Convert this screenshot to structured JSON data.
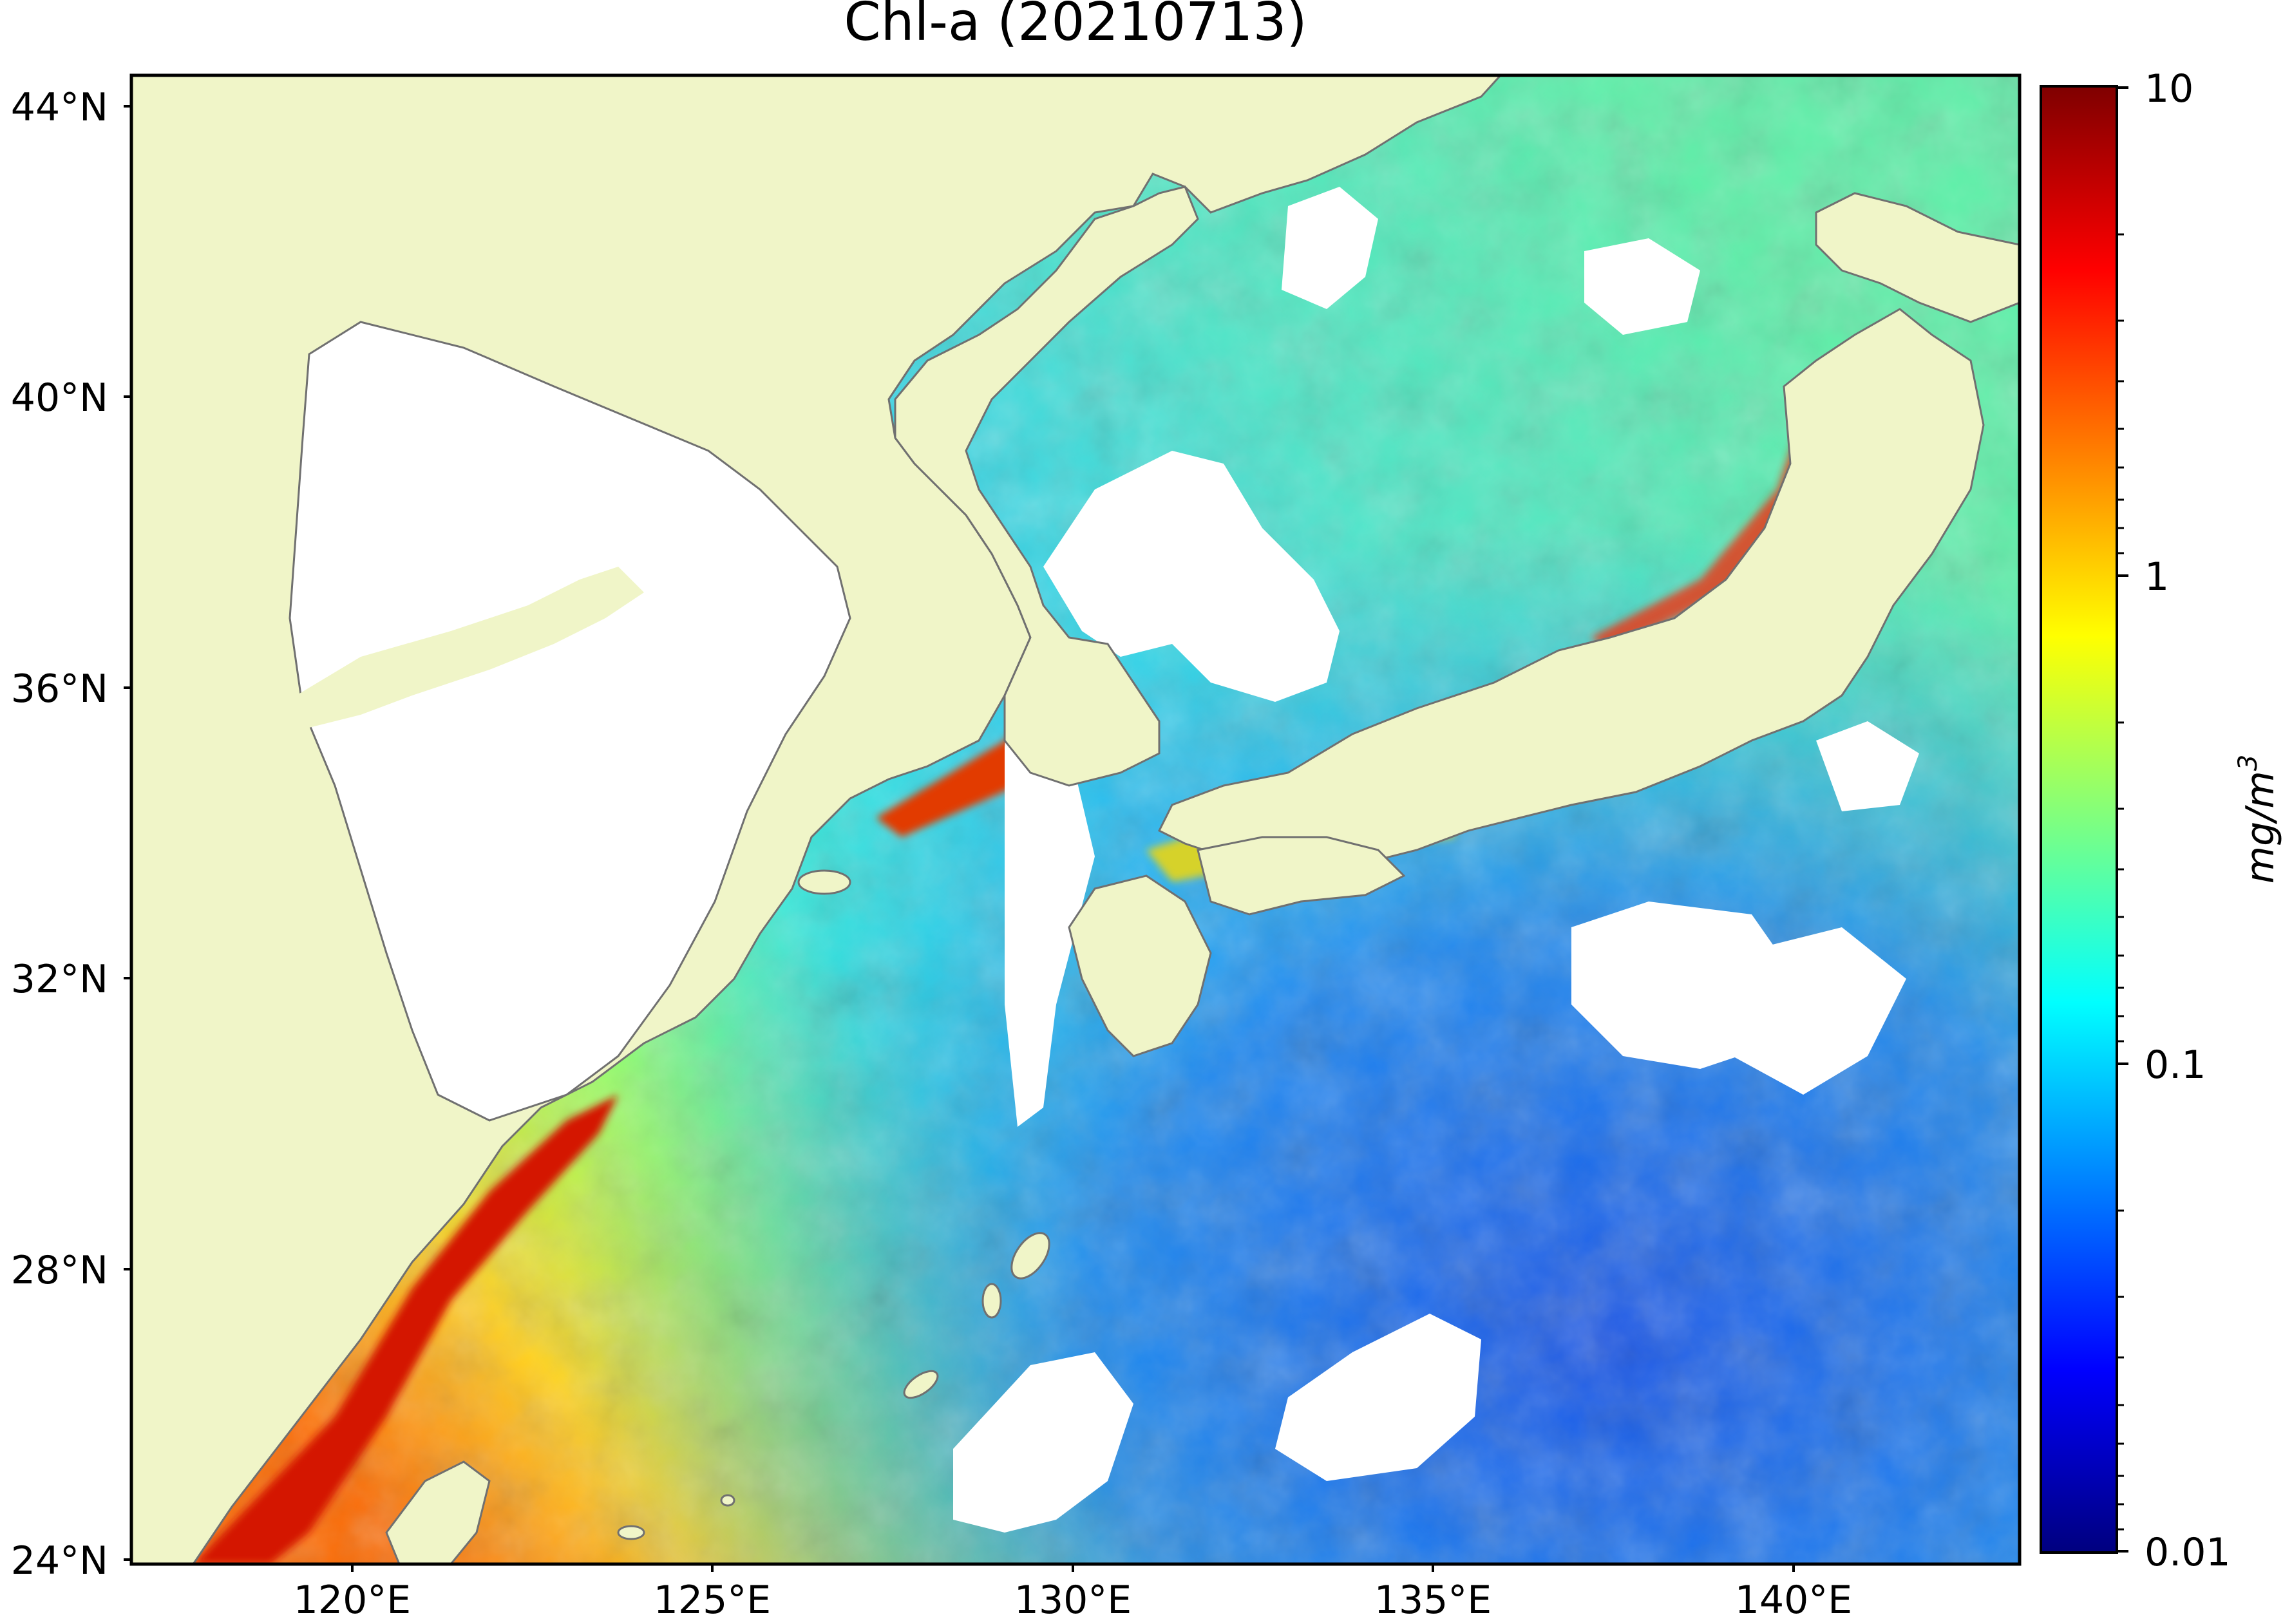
{
  "title": "Chl-a (20210713)",
  "axes": {
    "lat_ticks": [
      "24°N",
      "28°N",
      "32°N",
      "36°N",
      "40°N",
      "44°N"
    ],
    "lon_ticks": [
      "120°E",
      "125°E",
      "130°E",
      "135°E",
      "140°E"
    ],
    "lat_range": [
      24,
      44.5
    ],
    "lon_range": [
      116.8,
      143.0
    ]
  },
  "colorbar": {
    "label": "mg/m3",
    "label_base": "mg/m",
    "label_exp": "3",
    "ticks": [
      "10",
      "1",
      "0.1",
      "0.01"
    ],
    "scale": "log",
    "range": [
      0.01,
      10
    ],
    "colormap": [
      "#00007f",
      "#0000ff",
      "#007fff",
      "#00ffff",
      "#7fff7f",
      "#ffff00",
      "#ff7f00",
      "#ff0000",
      "#7f0000"
    ]
  },
  "colors": {
    "land": "#f0f5c8",
    "coastline": "#707070",
    "cloud_nodata": "#ffffff"
  }
}
